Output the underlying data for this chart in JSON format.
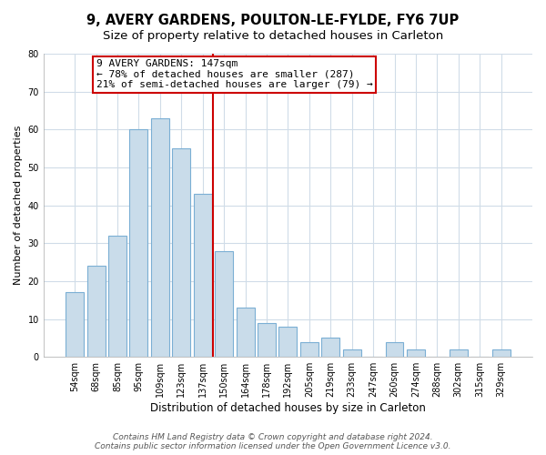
{
  "title": "9, AVERY GARDENS, POULTON-LE-FYLDE, FY6 7UP",
  "subtitle": "Size of property relative to detached houses in Carleton",
  "xlabel": "Distribution of detached houses by size in Carleton",
  "ylabel": "Number of detached properties",
  "bar_labels": [
    "54sqm",
    "68sqm",
    "85sqm",
    "95sqm",
    "109sqm",
    "123sqm",
    "137sqm",
    "150sqm",
    "164sqm",
    "178sqm",
    "192sqm",
    "205sqm",
    "219sqm",
    "233sqm",
    "247sqm",
    "260sqm",
    "274sqm",
    "288sqm",
    "302sqm",
    "315sqm",
    "329sqm"
  ],
  "bar_heights": [
    17,
    24,
    32,
    60,
    63,
    55,
    43,
    28,
    13,
    9,
    8,
    4,
    5,
    2,
    0,
    4,
    2,
    0,
    2,
    0,
    2
  ],
  "bar_color": "#c9dcea",
  "bar_edge_color": "#7bafd4",
  "vline_x_idx": 7,
  "vline_color": "#cc0000",
  "annotation_line1": "9 AVERY GARDENS: 147sqm",
  "annotation_line2": "← 78% of detached houses are smaller (287)",
  "annotation_line3": "21% of semi-detached houses are larger (79) →",
  "annotation_box_color": "#ffffff",
  "annotation_box_edge": "#cc0000",
  "ylim": [
    0,
    80
  ],
  "yticks": [
    0,
    10,
    20,
    30,
    40,
    50,
    60,
    70,
    80
  ],
  "footer_line1": "Contains HM Land Registry data © Crown copyright and database right 2024.",
  "footer_line2": "Contains public sector information licensed under the Open Government Licence v3.0.",
  "bg_color": "#ffffff",
  "plot_bg_color": "#ffffff",
  "grid_color": "#d0dce8",
  "title_fontsize": 10.5,
  "subtitle_fontsize": 9.5,
  "xlabel_fontsize": 8.5,
  "ylabel_fontsize": 8,
  "tick_fontsize": 7,
  "footer_fontsize": 6.5,
  "annotation_fontsize": 8
}
